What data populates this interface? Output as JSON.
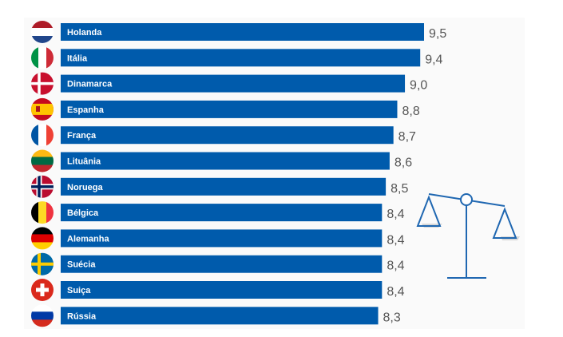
{
  "chart_data": {
    "type": "bar",
    "orientation": "horizontal",
    "categories": [
      "Holanda",
      "Itália",
      "Dinamarca",
      "Espanha",
      "França",
      "Lituânia",
      "Noruega",
      "Bélgica",
      "Alemanha",
      "Suécia",
      "Suiça",
      "Rússia"
    ],
    "values": [
      9.5,
      9.4,
      9.0,
      8.8,
      8.7,
      8.6,
      8.5,
      8.4,
      8.4,
      8.4,
      8.4,
      8.3
    ],
    "value_labels": [
      "9,5",
      "9,4",
      "9,0",
      "8,8",
      "8,7",
      "8,6",
      "8,5",
      "8,4",
      "8,4",
      "8,4",
      "8,4",
      "8,3"
    ],
    "flags": [
      "netherlands",
      "italy",
      "denmark",
      "spain",
      "france",
      "lithuania",
      "norway",
      "belgium",
      "germany",
      "sweden",
      "switzerland",
      "russia"
    ],
    "bar_color": "#005bac",
    "grid": false,
    "decoration": "balance-scale-icon"
  }
}
